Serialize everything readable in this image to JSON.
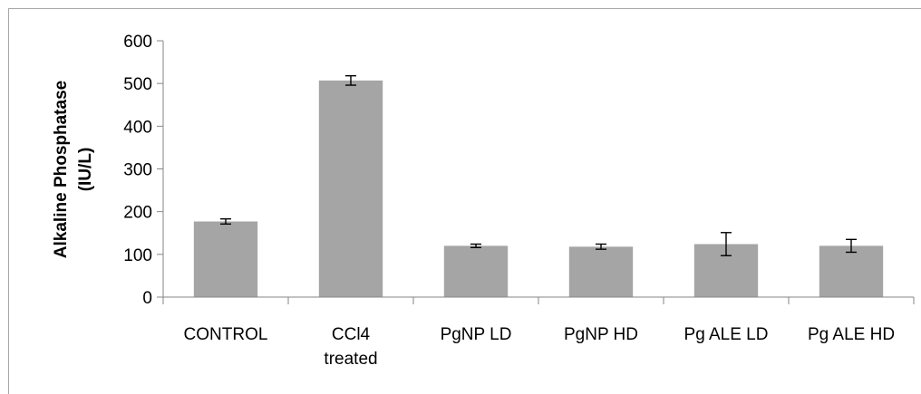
{
  "chart_data": {
    "type": "bar",
    "title": "",
    "xlabel": "",
    "ylabel": "Alkaline Phosphatase (IU/L)",
    "ylabel_lines": [
      "Alkaline Phosphatase",
      "(IU/L)"
    ],
    "categories": [
      [
        "CONTROL"
      ],
      [
        "CCl4",
        "treated"
      ],
      [
        "PgNP LD"
      ],
      [
        "PgNP HD"
      ],
      [
        "Pg ALE LD"
      ],
      [
        "Pg ALE HD"
      ]
    ],
    "values": [
      177,
      507,
      120,
      118,
      124,
      120
    ],
    "error": [
      6,
      11,
      4,
      6,
      27,
      15
    ],
    "ylim": [
      0,
      600
    ],
    "yticks": [
      0,
      100,
      200,
      300,
      400,
      500,
      600
    ],
    "grid": false,
    "legend": "none",
    "colors": {
      "bar": "#a5a5a5",
      "axis": "#868686",
      "error_bar": "#000000"
    }
  }
}
